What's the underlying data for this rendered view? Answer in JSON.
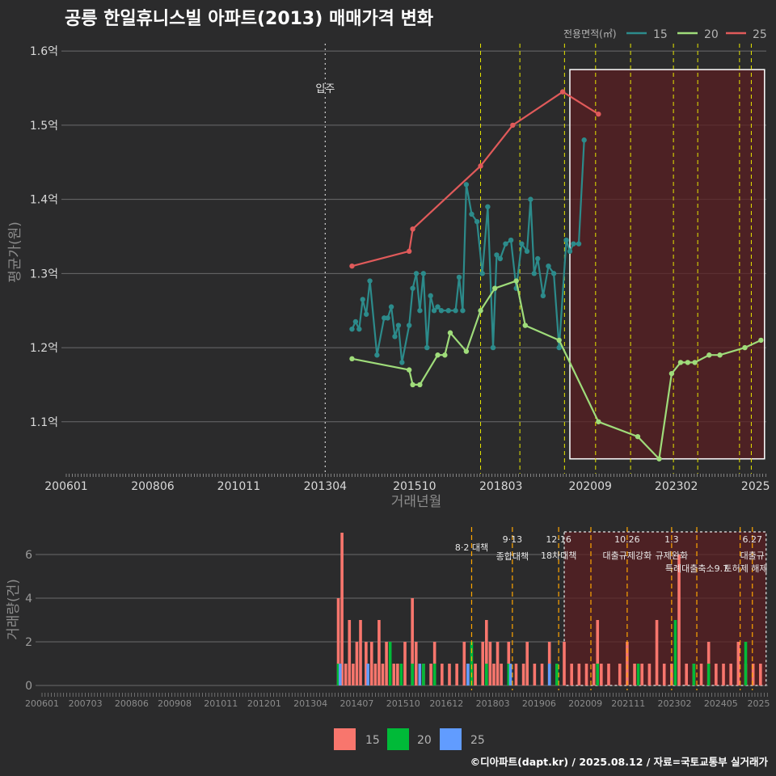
{
  "title": "공릉 한일휴니스빌 아파트(2013) 매매가격 변화",
  "caption": "©디아파트(dapt.kr) / 2025.08.12 / 자료=국토교통부 실거래가",
  "colors": {
    "s15": "#2c8b8b",
    "s20": "#9fdc7a",
    "s25": "#e05a5a",
    "bar15": "#f8766d",
    "bar20": "#00ba38",
    "bar25": "#619cff",
    "highlight": "#5a1f22",
    "vline": "#e6e600",
    "bar_vline": "#ffa500"
  },
  "chart_data": [
    {
      "type": "line",
      "title": "공릉 한일휴니스빌 아파트(2013) 매매가격 변화",
      "xlabel": "거래년월",
      "ylabel": "평균가(원)",
      "x_ticks": [
        "200601",
        "200806",
        "201011",
        "201304",
        "201510",
        "201803",
        "202009",
        "202302",
        "2025"
      ],
      "y_ticks": [
        "1.1억",
        "1.2억",
        "1.3억",
        "1.4억",
        "1.5억",
        "1.6억"
      ],
      "ylim": [
        1.03,
        1.61
      ],
      "y_unit": "억원",
      "xlim": [
        2006.0,
        2025.6
      ],
      "legend_title": "전용면적(㎡)",
      "legend_position": "top-right",
      "legend_entries": [
        "15",
        "20",
        "25"
      ],
      "grid": true,
      "move_in": {
        "x": 2013.25,
        "label": "입주"
      },
      "policy_lines": [
        2017.6,
        2018.7,
        2019.95,
        2020.82,
        2021.8,
        2023.0,
        2023.68,
        2024.85,
        2025.18
      ],
      "highlight_range": {
        "x": [
          2020.1,
          2025.55
        ],
        "y": [
          1.05,
          1.575
        ]
      },
      "series": [
        {
          "name": "15",
          "x": [
            2014.0,
            2014.1,
            2014.2,
            2014.3,
            2014.4,
            2014.5,
            2014.7,
            2014.9,
            2015.0,
            2015.1,
            2015.2,
            2015.3,
            2015.4,
            2015.6,
            2015.7,
            2015.8,
            2015.9,
            2016.0,
            2016.1,
            2016.2,
            2016.3,
            2016.4,
            2016.5,
            2016.7,
            2016.9,
            2017.0,
            2017.1,
            2017.2,
            2017.35,
            2017.5,
            2017.65,
            2017.8,
            2017.95,
            2018.05,
            2018.15,
            2018.3,
            2018.45,
            2018.6,
            2018.75,
            2018.9,
            2019.0,
            2019.1,
            2019.2,
            2019.35,
            2019.5,
            2019.65,
            2019.8,
            2020.0,
            2020.1,
            2020.2,
            2020.35,
            2020.5
          ],
          "y": [
            1.225,
            1.235,
            1.225,
            1.265,
            1.245,
            1.29,
            1.19,
            1.24,
            1.24,
            1.255,
            1.215,
            1.23,
            1.18,
            1.23,
            1.28,
            1.3,
            1.25,
            1.3,
            1.2,
            1.27,
            1.25,
            1.255,
            1.25,
            1.25,
            1.25,
            1.295,
            1.25,
            1.42,
            1.38,
            1.37,
            1.3,
            1.39,
            1.2,
            1.325,
            1.32,
            1.34,
            1.345,
            1.28,
            1.34,
            1.33,
            1.4,
            1.3,
            1.32,
            1.27,
            1.31,
            1.3,
            1.2,
            1.345,
            1.33,
            1.34,
            1.34,
            1.48
          ]
        },
        {
          "name": "20",
          "x": [
            2014.0,
            2015.6,
            2015.7,
            2015.9,
            2016.4,
            2016.6,
            2016.75,
            2017.2,
            2017.6,
            2018.0,
            2018.6,
            2018.85,
            2019.8,
            2020.9,
            2022.0,
            2022.6,
            2022.95,
            2023.2,
            2023.4,
            2023.6,
            2024.0,
            2024.3,
            2025.0,
            2025.45
          ],
          "y": [
            1.185,
            1.17,
            1.15,
            1.15,
            1.19,
            1.19,
            1.22,
            1.195,
            1.25,
            1.28,
            1.29,
            1.23,
            1.21,
            1.1,
            1.08,
            1.05,
            1.165,
            1.18,
            1.18,
            1.18,
            1.19,
            1.19,
            1.2,
            1.21
          ]
        },
        {
          "name": "25",
          "x": [
            2014.0,
            2015.6,
            2015.7,
            2017.6,
            2018.5,
            2019.9,
            2020.9
          ],
          "y": [
            1.31,
            1.33,
            1.36,
            1.445,
            1.5,
            1.545,
            1.515
          ]
        }
      ]
    },
    {
      "type": "bar",
      "ylabel": "거래량(건)",
      "ylim": [
        0,
        7
      ],
      "y_ticks": [
        "0",
        "2",
        "4",
        "6"
      ],
      "x_ticks": [
        "200601",
        "200703",
        "200806",
        "200908",
        "201011",
        "201201",
        "201304",
        "201407",
        "201510",
        "201612",
        "201803",
        "201906",
        "202009",
        "202111",
        "202302",
        "202405",
        "2025"
      ],
      "legend_entries": [
        "15",
        "20",
        "25"
      ],
      "legend_position": "bottom",
      "annotations": [
        {
          "x": 2017.6,
          "date": "8·2",
          "text": "대책"
        },
        {
          "x": 2018.7,
          "date": "9·13",
          "text": "종합대책"
        },
        {
          "x": 2019.95,
          "date": "12·16",
          "text": "18차대책"
        },
        {
          "x": 2021.8,
          "date": "10.26",
          "text": "대출규제강화"
        },
        {
          "x": 2023.0,
          "date": "1.3",
          "text": "규제완화"
        },
        {
          "x": 2023.68,
          "date": "9.7",
          "text": "특례대출축소"
        },
        {
          "x": 2025.18,
          "date": "6.27",
          "text": "대출규"
        },
        {
          "x": 2025.0,
          "date": "",
          "text": "토허제 해제"
        }
      ],
      "policy_lines": [
        2017.6,
        2018.7,
        2019.95,
        2020.82,
        2021.8,
        2023.0,
        2023.68,
        2024.85,
        2025.18
      ],
      "highlight_range": {
        "x": [
          2020.1,
          2025.55
        ]
      },
      "series": [
        {
          "name": "15",
          "x": [
            2014.0,
            2014.1,
            2014.2,
            2014.3,
            2014.4,
            2014.5,
            2014.6,
            2014.75,
            2014.9,
            2015.0,
            2015.1,
            2015.2,
            2015.3,
            2015.5,
            2015.6,
            2015.8,
            2016.0,
            2016.1,
            2016.3,
            2016.5,
            2016.6,
            2016.8,
            2017.0,
            2017.2,
            2017.4,
            2017.5,
            2017.7,
            2017.9,
            2018.0,
            2018.1,
            2018.2,
            2018.3,
            2018.4,
            2018.6,
            2018.8,
            2019.0,
            2019.1,
            2019.3,
            2019.5,
            2019.7,
            2019.9,
            2020.1,
            2020.3,
            2020.5,
            2020.7,
            2020.9,
            2021.0,
            2021.1,
            2021.3,
            2021.6,
            2021.8,
            2022.0,
            2022.2,
            2022.4,
            2022.6,
            2022.8,
            2023.0,
            2023.2,
            2023.4,
            2023.6,
            2023.8,
            2024.0,
            2024.2,
            2024.4,
            2024.6,
            2024.8,
            2025.0,
            2025.2,
            2025.4
          ],
          "y": [
            4,
            7,
            1,
            3,
            1,
            2,
            3,
            2,
            2,
            1,
            3,
            1,
            2,
            1,
            1,
            2,
            4,
            2,
            1,
            1,
            2,
            1,
            1,
            1,
            2,
            1,
            1,
            2,
            3,
            2,
            1,
            2,
            1,
            2,
            1,
            1,
            2,
            1,
            1,
            2,
            1,
            2,
            1,
            1,
            1,
            1,
            3,
            1,
            1,
            1,
            2,
            1,
            1,
            1,
            3,
            1,
            1,
            6,
            1,
            1,
            1,
            2,
            1,
            1,
            1,
            2,
            1,
            1,
            1
          ]
        },
        {
          "name": "20",
          "x": [
            2014.0,
            2015.4,
            2015.7,
            2016.0,
            2016.3,
            2016.6,
            2017.6,
            2018.0,
            2018.6,
            2019.9,
            2021.0,
            2022.1,
            2023.1,
            2023.6,
            2024.0,
            2025.0
          ],
          "y": [
            1,
            2,
            1,
            1,
            1,
            1,
            2,
            1,
            1,
            1,
            1,
            1,
            3,
            1,
            1,
            2
          ]
        },
        {
          "name": "25",
          "x": [
            2014.05,
            2014.8,
            2016.2,
            2017.5,
            2018.65,
            2019.7
          ],
          "y": [
            1,
            1,
            1,
            1,
            1,
            1
          ]
        }
      ]
    }
  ]
}
